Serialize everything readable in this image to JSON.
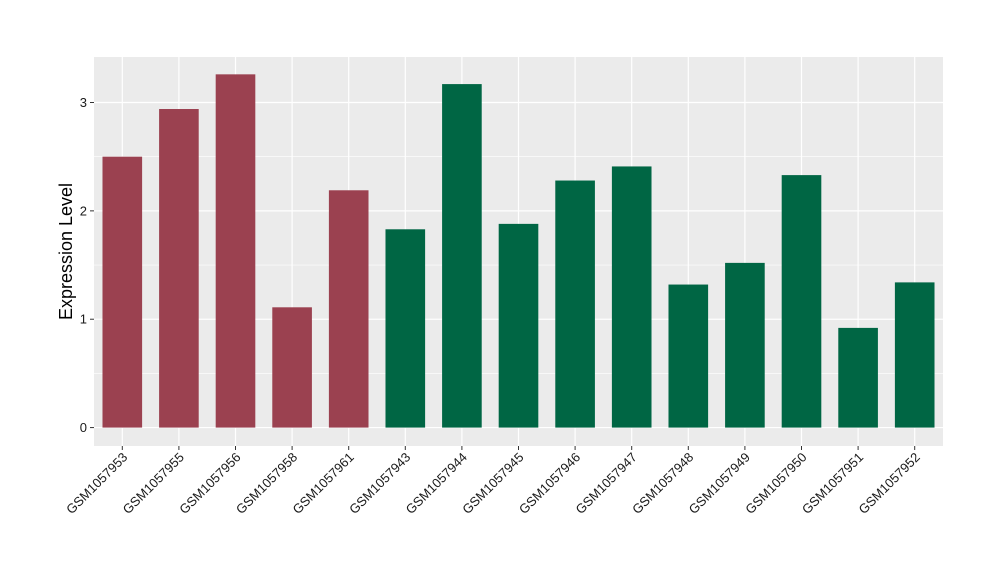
{
  "chart_data": {
    "type": "bar",
    "title": "",
    "xlabel": "",
    "ylabel": "Expression Level",
    "ylim": [
      -0.17,
      3.42
    ],
    "yticks": [
      0,
      1,
      2,
      3
    ],
    "grid": true,
    "legend": "none",
    "background_color": "#ebebeb",
    "grid_color": "#ffffff",
    "categories": [
      "GSM1057953",
      "GSM1057955",
      "GSM1057956",
      "GSM1057958",
      "GSM1057961",
      "GSM1057943",
      "GSM1057944",
      "GSM1057945",
      "GSM1057946",
      "GSM1057947",
      "GSM1057948",
      "GSM1057949",
      "GSM1057950",
      "GSM1057951",
      "GSM1057952"
    ],
    "values": [
      2.5,
      2.94,
      3.26,
      1.11,
      2.19,
      1.83,
      3.17,
      1.88,
      2.28,
      2.41,
      1.32,
      1.52,
      2.33,
      0.92,
      1.34
    ],
    "colors": [
      "#9b4150",
      "#9b4150",
      "#9b4150",
      "#9b4150",
      "#9b4150",
      "#006644",
      "#006644",
      "#006644",
      "#006644",
      "#006644",
      "#006644",
      "#006644",
      "#006644",
      "#006644",
      "#006644"
    ]
  }
}
